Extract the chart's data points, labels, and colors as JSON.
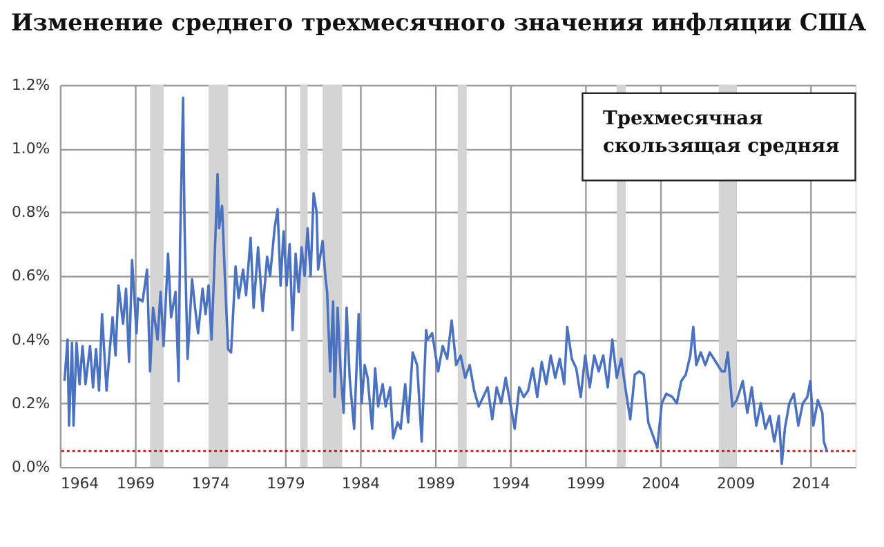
{
  "chart_data": {
    "type": "line",
    "title": "Изменение среднего трехмесячного значения инфляции США",
    "x": [
      1964.3,
      1964.5,
      1964.6,
      1964.8,
      1964.9,
      1965.1,
      1965.3,
      1965.5,
      1965.7,
      1966.0,
      1966.2,
      1966.4,
      1966.6,
      1966.8,
      1967.1,
      1967.3,
      1967.5,
      1967.7,
      1967.9,
      1968.2,
      1968.4,
      1968.6,
      1968.8,
      1969.1,
      1969.2,
      1969.5,
      1969.8,
      1970.0,
      1970.2,
      1970.5,
      1970.7,
      1970.9,
      1971.2,
      1971.4,
      1971.7,
      1971.9,
      1972.0,
      1972.2,
      1972.3,
      1972.5,
      1972.8,
      1973.0,
      1973.2,
      1973.5,
      1973.7,
      1973.9,
      1974.1,
      1974.3,
      1974.5,
      1974.6,
      1974.8,
      1975.0,
      1975.2,
      1975.4,
      1975.7,
      1975.9,
      1976.2,
      1976.4,
      1976.7,
      1976.9,
      1977.2,
      1977.5,
      1977.8,
      1978.0,
      1978.3,
      1978.5,
      1978.7,
      1978.9,
      1979.1,
      1979.3,
      1979.5,
      1979.7,
      1979.9,
      1980.1,
      1980.3,
      1980.5,
      1980.7,
      1980.9,
      1981.1,
      1981.2,
      1981.5,
      1981.7,
      1981.8,
      1982.0,
      1982.2,
      1982.3,
      1982.5,
      1982.7,
      1982.9,
      1983.1,
      1983.3,
      1983.6,
      1983.9,
      1984.1,
      1984.3,
      1984.5,
      1984.8,
      1985.0,
      1985.2,
      1985.5,
      1985.7,
      1986.0,
      1986.2,
      1986.5,
      1986.7,
      1987.0,
      1987.2,
      1987.5,
      1987.8,
      1988.1,
      1988.4,
      1988.5,
      1988.8,
      1989.2,
      1989.5,
      1989.8,
      1990.1,
      1990.4,
      1990.7,
      1991.0,
      1991.3,
      1991.6,
      1991.9,
      1992.2,
      1992.5,
      1992.8,
      1993.1,
      1993.4,
      1993.7,
      1994.0,
      1994.3,
      1994.6,
      1994.9,
      1995.2,
      1995.5,
      1995.8,
      1996.1,
      1996.4,
      1996.7,
      1997.0,
      1997.3,
      1997.6,
      1997.8,
      1998.1,
      1998.4,
      1998.7,
      1999.0,
      1999.3,
      1999.6,
      1999.9,
      2000.2,
      2000.5,
      2000.8,
      2001.1,
      2001.4,
      2001.7,
      2002.0,
      2002.3,
      2002.6,
      2002.9,
      2003.2,
      2003.5,
      2003.8,
      2004.1,
      2004.4,
      2004.8,
      2005.1,
      2005.4,
      2005.7,
      2006.0,
      2006.2,
      2006.4,
      2006.7,
      2007.0,
      2007.3,
      2007.7,
      2008.1,
      2008.3,
      2008.5,
      2008.8,
      2009.1,
      2009.5,
      2009.8,
      2010.1,
      2010.4,
      2010.7,
      2011.0,
      2011.3,
      2011.6,
      2011.9,
      2012.1,
      2012.3,
      2012.6,
      2012.9,
      2013.2,
      2013.5,
      2013.8,
      2014.0,
      2014.2,
      2014.5,
      2014.8,
      2014.9,
      2015.1
    ],
    "series": [
      {
        "name": "Трехмесячная скользящая средняя",
        "color": "#4a72c0",
        "values": [
          0.27,
          0.4,
          0.13,
          0.39,
          0.13,
          0.39,
          0.26,
          0.38,
          0.26,
          0.38,
          0.25,
          0.37,
          0.24,
          0.48,
          0.24,
          0.36,
          0.47,
          0.35,
          0.57,
          0.45,
          0.56,
          0.33,
          0.65,
          0.42,
          0.53,
          0.52,
          0.62,
          0.3,
          0.5,
          0.4,
          0.55,
          0.38,
          0.67,
          0.47,
          0.55,
          0.27,
          0.7,
          1.16,
          0.75,
          0.34,
          0.59,
          0.5,
          0.42,
          0.56,
          0.48,
          0.57,
          0.4,
          0.65,
          0.92,
          0.75,
          0.82,
          0.58,
          0.37,
          0.36,
          0.63,
          0.53,
          0.62,
          0.54,
          0.72,
          0.5,
          0.69,
          0.49,
          0.66,
          0.6,
          0.75,
          0.81,
          0.57,
          0.74,
          0.57,
          0.7,
          0.43,
          0.67,
          0.55,
          0.69,
          0.6,
          0.75,
          0.6,
          0.86,
          0.8,
          0.62,
          0.71,
          0.59,
          0.55,
          0.3,
          0.52,
          0.22,
          0.5,
          0.3,
          0.17,
          0.5,
          0.28,
          0.12,
          0.48,
          0.2,
          0.32,
          0.28,
          0.12,
          0.31,
          0.19,
          0.26,
          0.19,
          0.25,
          0.09,
          0.14,
          0.12,
          0.26,
          0.14,
          0.36,
          0.32,
          0.08,
          0.43,
          0.4,
          0.42,
          0.3,
          0.38,
          0.34,
          0.46,
          0.32,
          0.35,
          0.28,
          0.32,
          0.24,
          0.19,
          0.22,
          0.25,
          0.15,
          0.25,
          0.2,
          0.28,
          0.2,
          0.12,
          0.25,
          0.22,
          0.24,
          0.31,
          0.22,
          0.33,
          0.26,
          0.35,
          0.28,
          0.34,
          0.26,
          0.44,
          0.34,
          0.31,
          0.22,
          0.35,
          0.25,
          0.35,
          0.3,
          0.35,
          0.25,
          0.4,
          0.28,
          0.34,
          0.24,
          0.15,
          0.29,
          0.3,
          0.29,
          0.14,
          0.1,
          0.06,
          0.2,
          0.23,
          0.22,
          0.2,
          0.27,
          0.29,
          0.35,
          0.44,
          0.32,
          0.36,
          0.32,
          0.36,
          0.33,
          0.3,
          0.3,
          0.36,
          0.19,
          0.21,
          0.27,
          0.17,
          0.25,
          0.13,
          0.2,
          0.12,
          0.16,
          0.08,
          0.16,
          0.01,
          0.12,
          0.2,
          0.23,
          0.13,
          0.2,
          0.22,
          0.27,
          0.13,
          0.21,
          0.17,
          0.08,
          0.05
        ]
      }
    ],
    "xlim": [
      1964,
      2017
    ],
    "xticks": [
      1964,
      1969,
      1974,
      1979,
      1984,
      1989,
      1994,
      1999,
      2004,
      2009,
      2014
    ],
    "ylim": [
      0,
      1.2
    ],
    "yticks": [
      {
        "value": 0,
        "label": "0.0%"
      },
      {
        "value": 0.2,
        "label": "0.2%"
      },
      {
        "value": 0.4,
        "label": "0.4%"
      },
      {
        "value": 0.6,
        "label": "0.6%"
      },
      {
        "value": 0.8,
        "label": "0.8%"
      },
      {
        "value": 1.0,
        "label": "1.0%"
      },
      {
        "value": 1.2,
        "label": "1.2%"
      }
    ],
    "grid": true,
    "ref_lines": [
      {
        "axis": "y",
        "value": 0.05,
        "color": "#c00000",
        "line_style": "dotted"
      }
    ],
    "bands": [
      {
        "axis": "x",
        "from": 1970.0,
        "to": 1970.9,
        "color": "#d4d4d4"
      },
      {
        "axis": "x",
        "from": 1973.9,
        "to": 1975.2,
        "color": "#d4d4d4"
      },
      {
        "axis": "x",
        "from": 1980.0,
        "to": 1980.5,
        "color": "#d4d4d4"
      },
      {
        "axis": "x",
        "from": 1981.5,
        "to": 1982.8,
        "color": "#d4d4d4"
      },
      {
        "axis": "x",
        "from": 1990.5,
        "to": 1991.1,
        "color": "#d4d4d4"
      },
      {
        "axis": "x",
        "from": 2001.1,
        "to": 2001.7,
        "color": "#d4d4d4"
      },
      {
        "axis": "x",
        "from": 2007.9,
        "to": 2009.1,
        "color": "#d4d4d4"
      }
    ]
  }
}
